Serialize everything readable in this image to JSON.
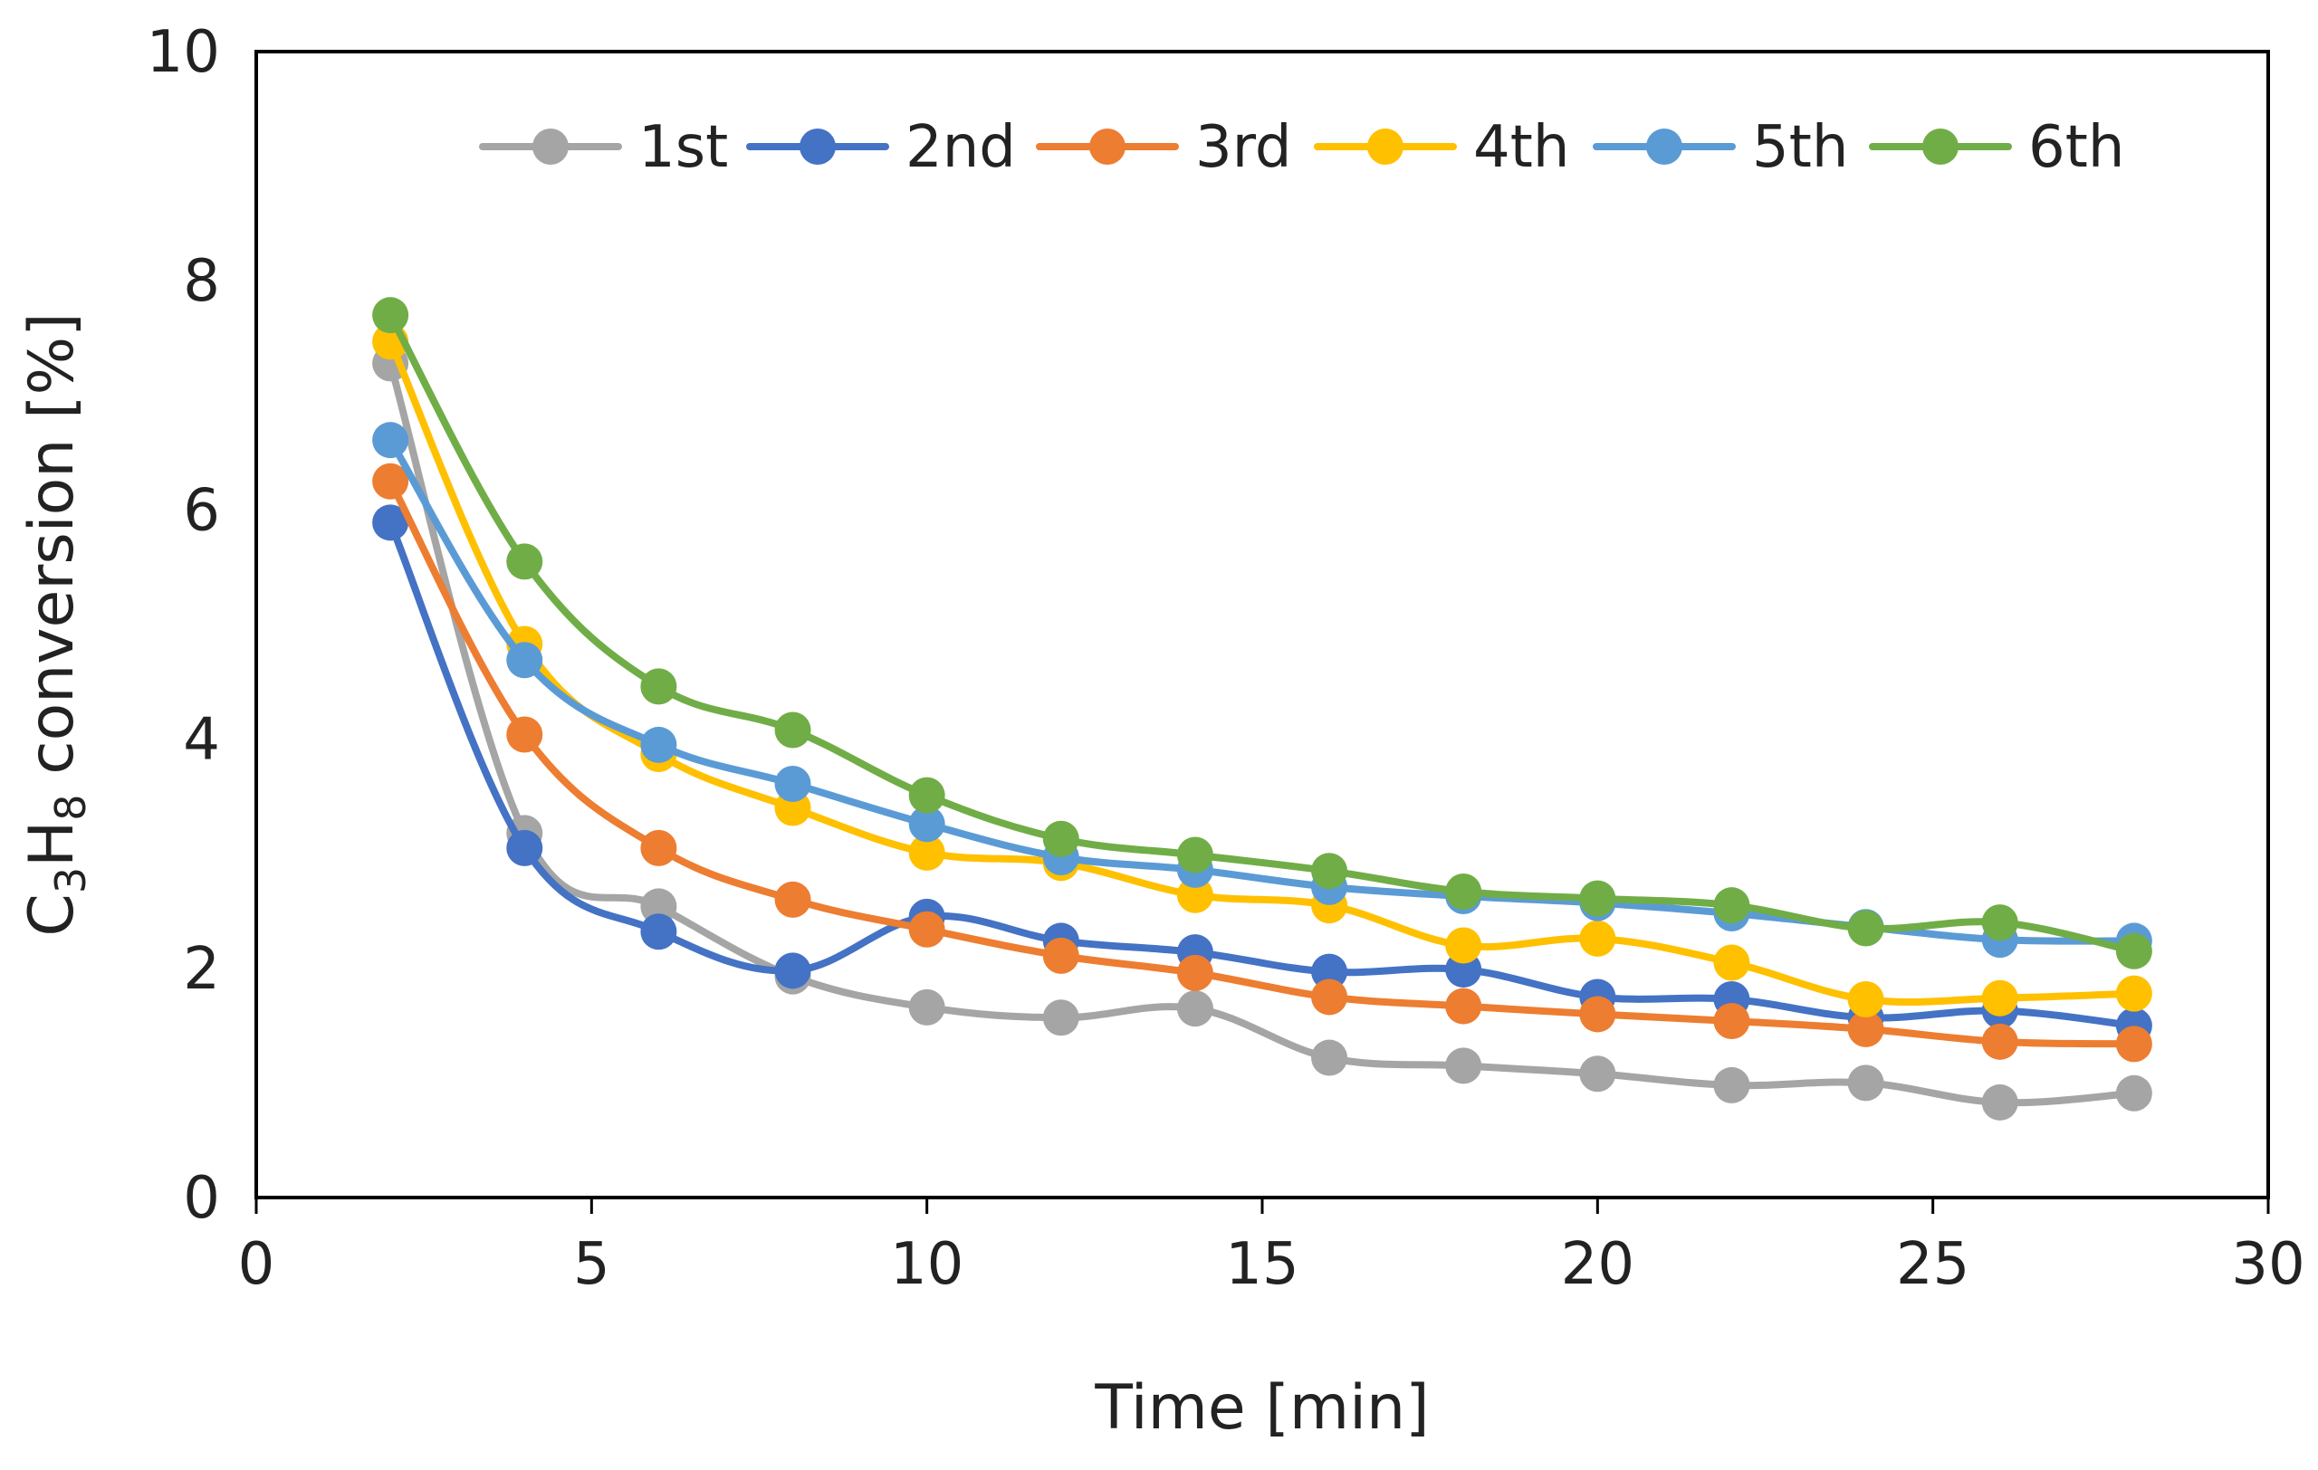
{
  "chart_data": {
    "type": "line",
    "title": "",
    "xlabel": "Time [min]",
    "ylabel": {
      "parts": [
        {
          "text": "C",
          "sub": false
        },
        {
          "text": "3",
          "sub": true
        },
        {
          "text": "H",
          "sub": false
        },
        {
          "text": "8",
          "sub": true
        },
        {
          "text": " conversion [%]",
          "sub": false
        }
      ]
    },
    "xlim": [
      0,
      30
    ],
    "ylim": [
      0,
      10
    ],
    "xticks": [
      0,
      5,
      10,
      15,
      20,
      25,
      30
    ],
    "yticks": [
      0,
      2,
      4,
      6,
      8,
      10
    ],
    "grid": false,
    "legend_position": "top",
    "x": [
      2,
      4,
      6,
      8,
      10,
      12,
      14,
      16,
      18,
      20,
      22,
      24,
      26,
      28
    ],
    "series": [
      {
        "name": "1st",
        "color": "#a5a5a5",
        "values": [
          7.28,
          3.18,
          2.54,
          1.93,
          1.66,
          1.57,
          1.65,
          1.22,
          1.15,
          1.08,
          0.98,
          1.0,
          0.83,
          0.91
        ]
      },
      {
        "name": "2nd",
        "color": "#4472c4",
        "values": [
          5.89,
          3.05,
          2.32,
          1.98,
          2.45,
          2.24,
          2.14,
          1.97,
          1.99,
          1.75,
          1.73,
          1.57,
          1.63,
          1.5
        ]
      },
      {
        "name": "3rd",
        "color": "#ed7d31",
        "values": [
          6.25,
          4.04,
          3.05,
          2.6,
          2.34,
          2.11,
          1.96,
          1.75,
          1.67,
          1.6,
          1.54,
          1.47,
          1.36,
          1.34
        ]
      },
      {
        "name": "4th",
        "color": "#ffc000",
        "values": [
          7.47,
          4.83,
          3.87,
          3.4,
          3.01,
          2.92,
          2.64,
          2.55,
          2.2,
          2.26,
          2.05,
          1.73,
          1.74,
          1.78
        ]
      },
      {
        "name": "5th",
        "color": "#5b9bd5",
        "values": [
          6.61,
          4.69,
          3.95,
          3.61,
          3.26,
          2.97,
          2.86,
          2.71,
          2.63,
          2.57,
          2.48,
          2.36,
          2.25,
          2.24
        ]
      },
      {
        "name": "6th",
        "color": "#70ad47",
        "values": [
          7.7,
          5.55,
          4.46,
          4.08,
          3.51,
          3.13,
          2.99,
          2.85,
          2.67,
          2.61,
          2.55,
          2.35,
          2.4,
          2.15
        ]
      }
    ]
  }
}
